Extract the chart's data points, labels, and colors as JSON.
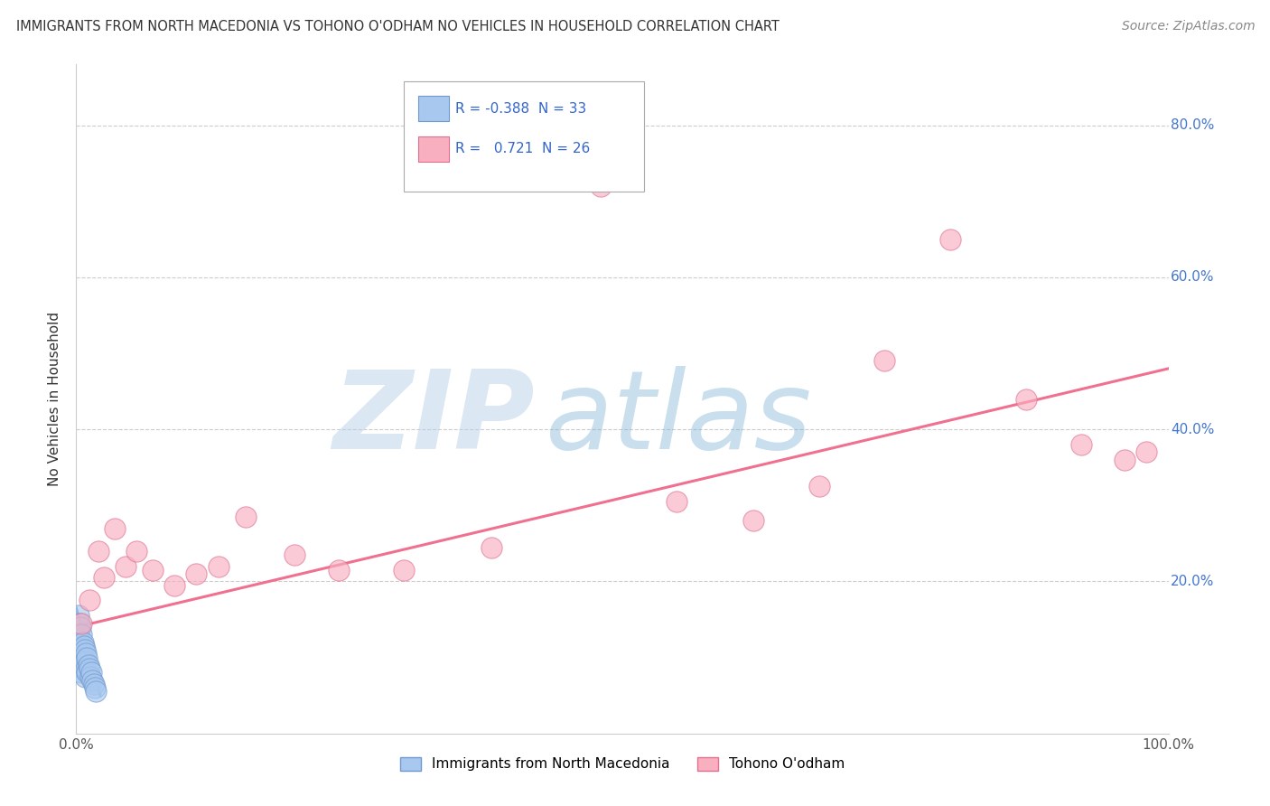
{
  "title": "IMMIGRANTS FROM NORTH MACEDONIA VS TOHONO O'ODHAM NO VEHICLES IN HOUSEHOLD CORRELATION CHART",
  "source": "Source: ZipAtlas.com",
  "ylabel": "No Vehicles in Household",
  "watermark_zip": "ZIP",
  "watermark_atlas": "atlas",
  "xlim": [
    0.0,
    1.0
  ],
  "ylim": [
    0.0,
    0.88
  ],
  "yticks": [
    0.0,
    0.2,
    0.4,
    0.6,
    0.8
  ],
  "ytick_labels": [
    "",
    "20.0%",
    "40.0%",
    "60.0%",
    "80.0%"
  ],
  "xticks": [
    0.0,
    0.2,
    0.4,
    0.6,
    0.8,
    1.0
  ],
  "xtick_labels": [
    "0.0%",
    "",
    "",
    "",
    "",
    "100.0%"
  ],
  "legend_R1": "-0.388",
  "legend_N1": "33",
  "legend_R2": "0.721",
  "legend_N2": "26",
  "blue_color": "#A8C8F0",
  "pink_color": "#F8B0C0",
  "blue_edge": "#7099CC",
  "pink_edge": "#E07090",
  "trend_pink_color": "#F07090",
  "trend_blue_color": "#6699CC",
  "blue_scatter_x": [
    0.002,
    0.002,
    0.003,
    0.003,
    0.003,
    0.004,
    0.004,
    0.004,
    0.005,
    0.005,
    0.005,
    0.005,
    0.006,
    0.006,
    0.006,
    0.007,
    0.007,
    0.007,
    0.008,
    0.008,
    0.008,
    0.009,
    0.009,
    0.01,
    0.01,
    0.011,
    0.012,
    0.013,
    0.014,
    0.015,
    0.016,
    0.017,
    0.018
  ],
  "blue_scatter_y": [
    0.155,
    0.13,
    0.145,
    0.12,
    0.105,
    0.14,
    0.11,
    0.095,
    0.13,
    0.11,
    0.095,
    0.08,
    0.12,
    0.1,
    0.085,
    0.115,
    0.1,
    0.085,
    0.11,
    0.095,
    0.075,
    0.105,
    0.085,
    0.1,
    0.08,
    0.09,
    0.085,
    0.075,
    0.08,
    0.07,
    0.065,
    0.06,
    0.055
  ],
  "pink_scatter_x": [
    0.005,
    0.012,
    0.02,
    0.025,
    0.035,
    0.045,
    0.055,
    0.07,
    0.09,
    0.11,
    0.13,
    0.155,
    0.2,
    0.24,
    0.3,
    0.38,
    0.48,
    0.55,
    0.62,
    0.68,
    0.74,
    0.8,
    0.87,
    0.92,
    0.96,
    0.98
  ],
  "pink_scatter_y": [
    0.145,
    0.175,
    0.24,
    0.205,
    0.27,
    0.22,
    0.24,
    0.215,
    0.195,
    0.21,
    0.22,
    0.285,
    0.235,
    0.215,
    0.215,
    0.245,
    0.72,
    0.305,
    0.28,
    0.325,
    0.49,
    0.65,
    0.44,
    0.38,
    0.36,
    0.37
  ],
  "pink_trend_x0": 0.0,
  "pink_trend_y0": 0.14,
  "pink_trend_x1": 1.0,
  "pink_trend_y1": 0.48,
  "blue_trend_x0": 0.0,
  "blue_trend_y0": 0.165,
  "blue_trend_x1": 0.022,
  "blue_trend_y1": 0.05,
  "background_color": "#FFFFFF",
  "grid_color": "#CCCCCC",
  "legend_label1": "Immigrants from North Macedonia",
  "legend_label2": "Tohono O'odham"
}
